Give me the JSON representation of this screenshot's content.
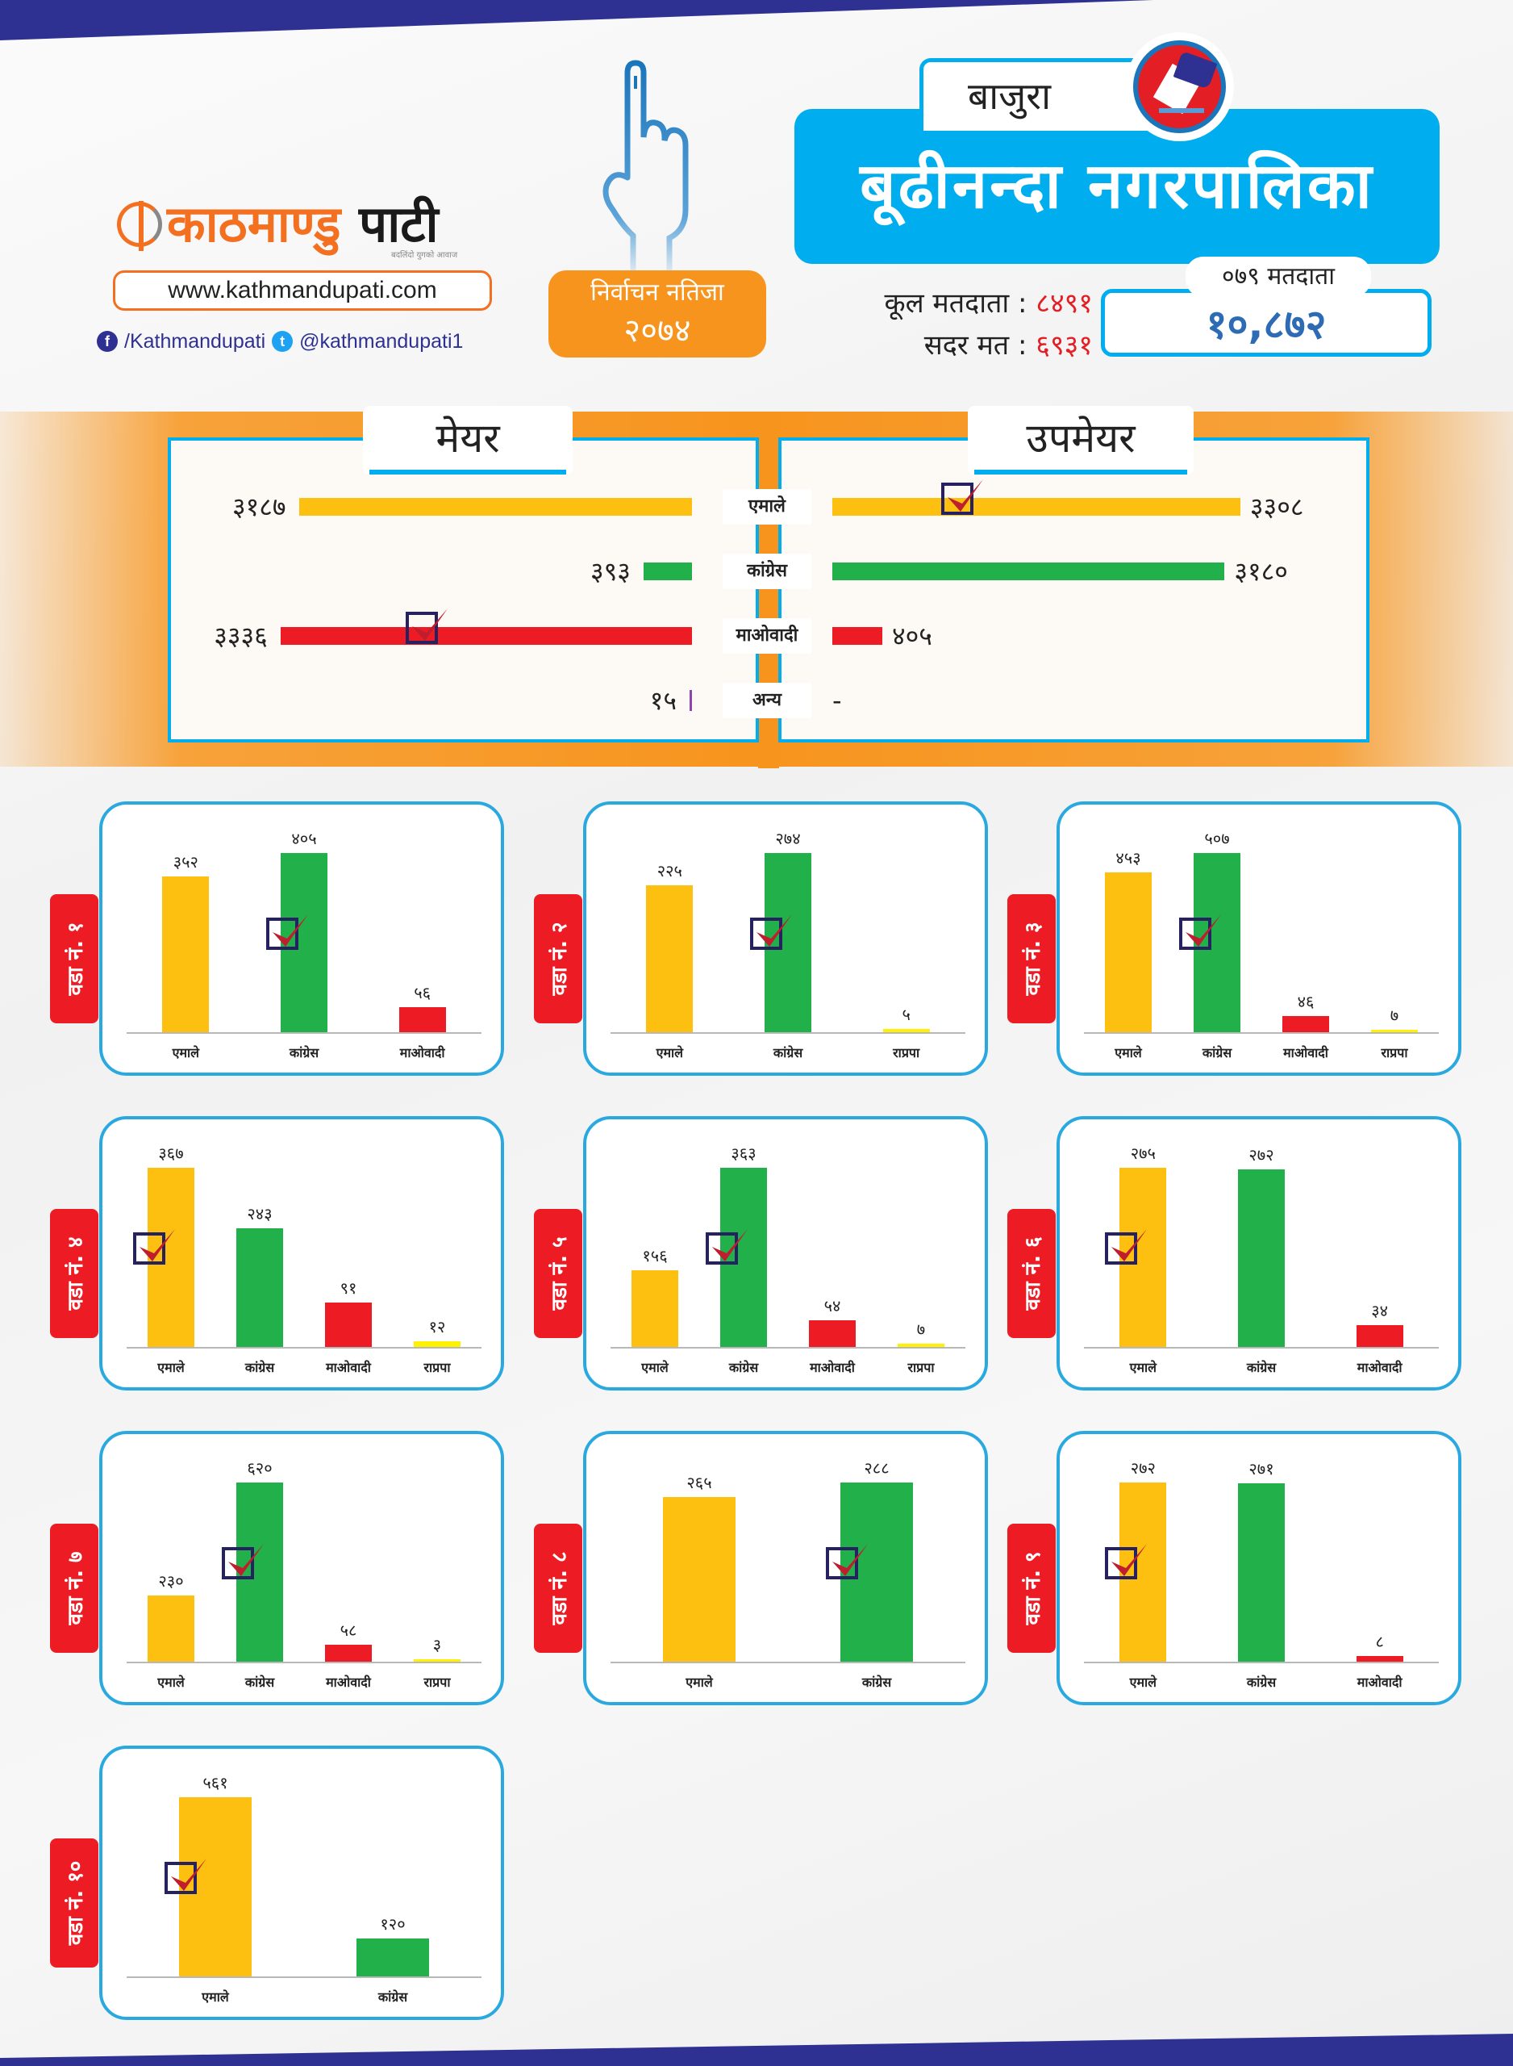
{
  "branding": {
    "logo_part1": "काठमाण्डु",
    "logo_part2": "पाटी",
    "tagline": "बदलिंदो युगको आवाज",
    "url": "www.kathmandupati.com",
    "facebook": "/Kathmandupati",
    "twitter": "@kathmandupati1",
    "facebook_icon": "f",
    "twitter_icon": "t"
  },
  "election": {
    "result_label": "निर्वाचन नतिजा",
    "year": "२०७४",
    "district": "बाजुरा",
    "municipality": "बूढीनन्दा नगरपालिका",
    "total_voters_label": "कूल मतदाता :",
    "total_voters": "८४९१",
    "valid_votes_label": "सदर मत :",
    "valid_votes": "६९३१",
    "voters_079_label": "०७९ मतदाता",
    "voters_079": "१०,८७२"
  },
  "colors": {
    "uml": "#fdc010",
    "congress": "#22b04b",
    "maoist": "#ed1c24",
    "rpp": "#fff200",
    "other": "#8e44ad",
    "accent_blue": "#00aeef",
    "orange": "#f7941d",
    "navy": "#2e3192"
  },
  "chart_data": [
    {
      "type": "bar",
      "title": "मेयर",
      "orientation": "horizontal",
      "categories": [
        "एमाले",
        "कांग्रेस",
        "माओवादी",
        "अन्य"
      ],
      "values": [
        3187,
        393,
        3336,
        15
      ],
      "labels": [
        "३१८७",
        "३९३",
        "३३३६",
        "१५"
      ],
      "winner": "माओवादी"
    },
    {
      "type": "bar",
      "title": "उपमेयर",
      "orientation": "horizontal",
      "categories": [
        "एमाले",
        "कांग्रेस",
        "माओवादी",
        "अन्य"
      ],
      "values": [
        3308,
        3180,
        405,
        null
      ],
      "labels": [
        "३३०८",
        "३१८०",
        "४०५",
        "-"
      ],
      "winner": "एमाले"
    },
    {
      "type": "bar",
      "title": "वडा नं. १",
      "categories": [
        "एमाले",
        "कांग्रेस",
        "माओवादी"
      ],
      "values": [
        352,
        405,
        56
      ],
      "labels": [
        "३५२",
        "४०५",
        "५६"
      ],
      "winner": "कांग्रेस"
    },
    {
      "type": "bar",
      "title": "वडा नं. २",
      "categories": [
        "एमाले",
        "कांग्रेस",
        "राप्रपा"
      ],
      "values": [
        225,
        274,
        5
      ],
      "labels": [
        "२२५",
        "२७४",
        "५"
      ],
      "winner": "कांग्रेस"
    },
    {
      "type": "bar",
      "title": "वडा नं. ३",
      "categories": [
        "एमाले",
        "कांग्रेस",
        "माओवादी",
        "राप्रपा"
      ],
      "values": [
        453,
        507,
        46,
        7
      ],
      "labels": [
        "४५३",
        "५०७",
        "४६",
        "७"
      ],
      "winner": "कांग्रेस"
    },
    {
      "type": "bar",
      "title": "वडा नं. ४",
      "categories": [
        "एमाले",
        "कांग्रेस",
        "माओवादी",
        "राप्रपा"
      ],
      "values": [
        367,
        243,
        91,
        12
      ],
      "labels": [
        "३६७",
        "२४३",
        "९१",
        "१२"
      ],
      "winner": "एमाले"
    },
    {
      "type": "bar",
      "title": "वडा नं. ५",
      "categories": [
        "एमाले",
        "कांग्रेस",
        "माओवादी",
        "राप्रपा"
      ],
      "values": [
        156,
        363,
        54,
        7
      ],
      "labels": [
        "१५६",
        "३६३",
        "५४",
        "७"
      ],
      "winner": "कांग्रेस"
    },
    {
      "type": "bar",
      "title": "वडा नं. ६",
      "categories": [
        "एमाले",
        "कांग्रेस",
        "माओवादी"
      ],
      "values": [
        275,
        272,
        34
      ],
      "labels": [
        "२७५",
        "२७२",
        "३४"
      ],
      "winner": "एमाले"
    },
    {
      "type": "bar",
      "title": "वडा नं. ७",
      "categories": [
        "एमाले",
        "कांग्रेस",
        "माओवादी",
        "राप्रपा"
      ],
      "values": [
        230,
        620,
        58,
        3
      ],
      "labels": [
        "२३०",
        "६२०",
        "५८",
        "३"
      ],
      "winner": "कांग्रेस"
    },
    {
      "type": "bar",
      "title": "वडा नं. ८",
      "categories": [
        "एमाले",
        "कांग्रेस"
      ],
      "values": [
        265,
        288
      ],
      "labels": [
        "२६५",
        "२८८"
      ],
      "winner": "कांग्रेस"
    },
    {
      "type": "bar",
      "title": "वडा नं. ९",
      "categories": [
        "एमाले",
        "कांग्रेस",
        "माओवादी"
      ],
      "values": [
        272,
        271,
        8
      ],
      "labels": [
        "२७२",
        "२७१",
        "८"
      ],
      "winner": "एमाले"
    },
    {
      "type": "bar",
      "title": "वडा नं. १०",
      "categories": [
        "एमाले",
        "कांग्रेस"
      ],
      "values": [
        561,
        120
      ],
      "labels": [
        "५६१",
        "१२०"
      ],
      "winner": "एमाले"
    }
  ]
}
